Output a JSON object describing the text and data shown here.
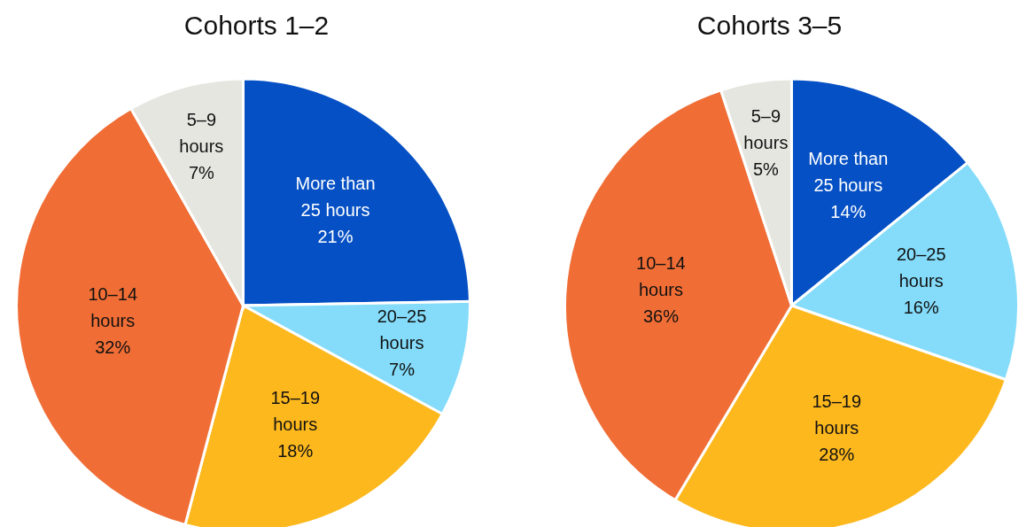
{
  "chart_data": [
    {
      "type": "pie",
      "title": "Cohorts 1–2",
      "categories": [
        "More than 25 hours",
        "20–25 hours",
        "15–19 hours",
        "10–14 hours",
        "5–9 hours"
      ],
      "values": [
        21,
        7,
        18,
        32,
        7
      ],
      "value_labels": [
        "21%",
        "7%",
        "18%",
        "32%",
        "7%"
      ],
      "colors": [
        "#0550c4",
        "#84dcfa",
        "#fdb81e",
        "#f06e36",
        "#e6e6e1"
      ]
    },
    {
      "type": "pie",
      "title": "Cohorts 3–5",
      "categories": [
        "More than 25 hours",
        "20–25 hours",
        "15–19 hours",
        "10–14 hours",
        "5–9 hours"
      ],
      "values": [
        14,
        16,
        28,
        36,
        5
      ],
      "value_labels": [
        "14%",
        "16%",
        "28%",
        "36%",
        "5%"
      ],
      "colors": [
        "#0550c4",
        "#84dcfa",
        "#fdb81e",
        "#f06e36",
        "#e6e6e1"
      ]
    }
  ]
}
